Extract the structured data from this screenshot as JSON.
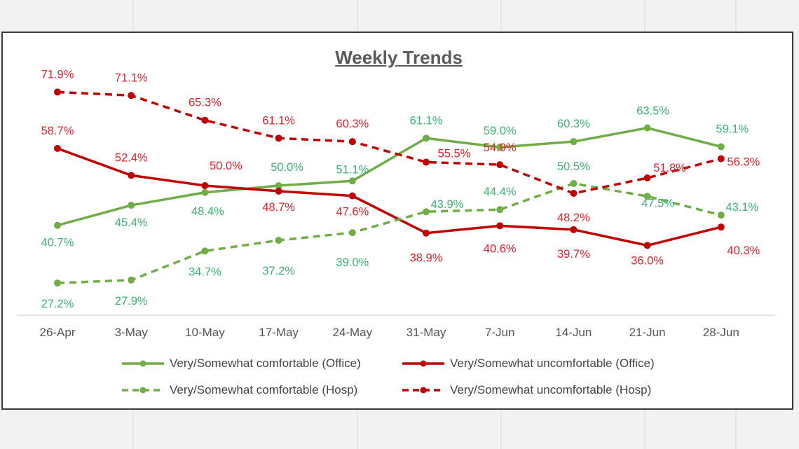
{
  "chart_data": {
    "type": "line",
    "title": "Weekly Trends",
    "categories": [
      "26-Apr",
      "3-May",
      "10-May",
      "17-May",
      "24-May",
      "31-May",
      "7-Jun",
      "14-Jun",
      "21-Jun",
      "28-Jun"
    ],
    "ylim": [
      20,
      80
    ],
    "grid": false,
    "legend_position": "bottom",
    "series": [
      {
        "name": "Very/Somewhat comfortable (Office)",
        "values": [
          40.7,
          45.4,
          48.4,
          50.0,
          51.1,
          61.1,
          59.0,
          60.3,
          63.5,
          59.1
        ],
        "color": "#70ad47",
        "dashed": false
      },
      {
        "name": "Very/Somewhat uncomfortable (Office)",
        "values": [
          58.7,
          52.4,
          50.0,
          48.7,
          47.6,
          38.9,
          40.6,
          39.7,
          36.0,
          40.3
        ],
        "color": "#c00000",
        "dashed": false
      },
      {
        "name": "Very/Somewhat comfortable (Hosp)",
        "values": [
          27.2,
          27.9,
          34.7,
          37.2,
          39.0,
          43.9,
          44.4,
          50.5,
          47.5,
          43.1
        ],
        "color": "#70ad47",
        "dashed": true
      },
      {
        "name": "Very/Somewhat uncomfortable (Hosp)",
        "values": [
          71.9,
          71.1,
          65.3,
          61.1,
          60.3,
          55.5,
          54.9,
          48.2,
          51.8,
          56.3
        ],
        "color": "#c00000",
        "dashed": true
      }
    ],
    "data_labels": {
      "comfortable_office": [
        "40.7%",
        "45.4%",
        "48.4%",
        "50.0%",
        "51.1%",
        "61.1%",
        "59.0%",
        "60.3%",
        "63.5%",
        "59.1%"
      ],
      "uncomfortable_office": [
        "58.7%",
        "52.4%",
        "50.0%",
        "48.7%",
        "47.6%",
        "38.9%",
        "40.6%",
        "39.7%",
        "36.0%",
        "40.3%"
      ],
      "comfortable_hosp": [
        "27.2%",
        "27.9%",
        "34.7%",
        "37.2%",
        "39.0%",
        "43.9%",
        "44.4%",
        "50.5%",
        "47.5%",
        "43.1%"
      ],
      "uncomfortable_hosp": [
        "71.9%",
        "71.1%",
        "65.3%",
        "61.1%",
        "60.3%",
        "55.5%",
        "54.9%",
        "48.2%",
        "51.8%",
        "56.3%"
      ]
    },
    "label_colors": {
      "green": "#3cb371",
      "red": "#e8202a"
    }
  }
}
